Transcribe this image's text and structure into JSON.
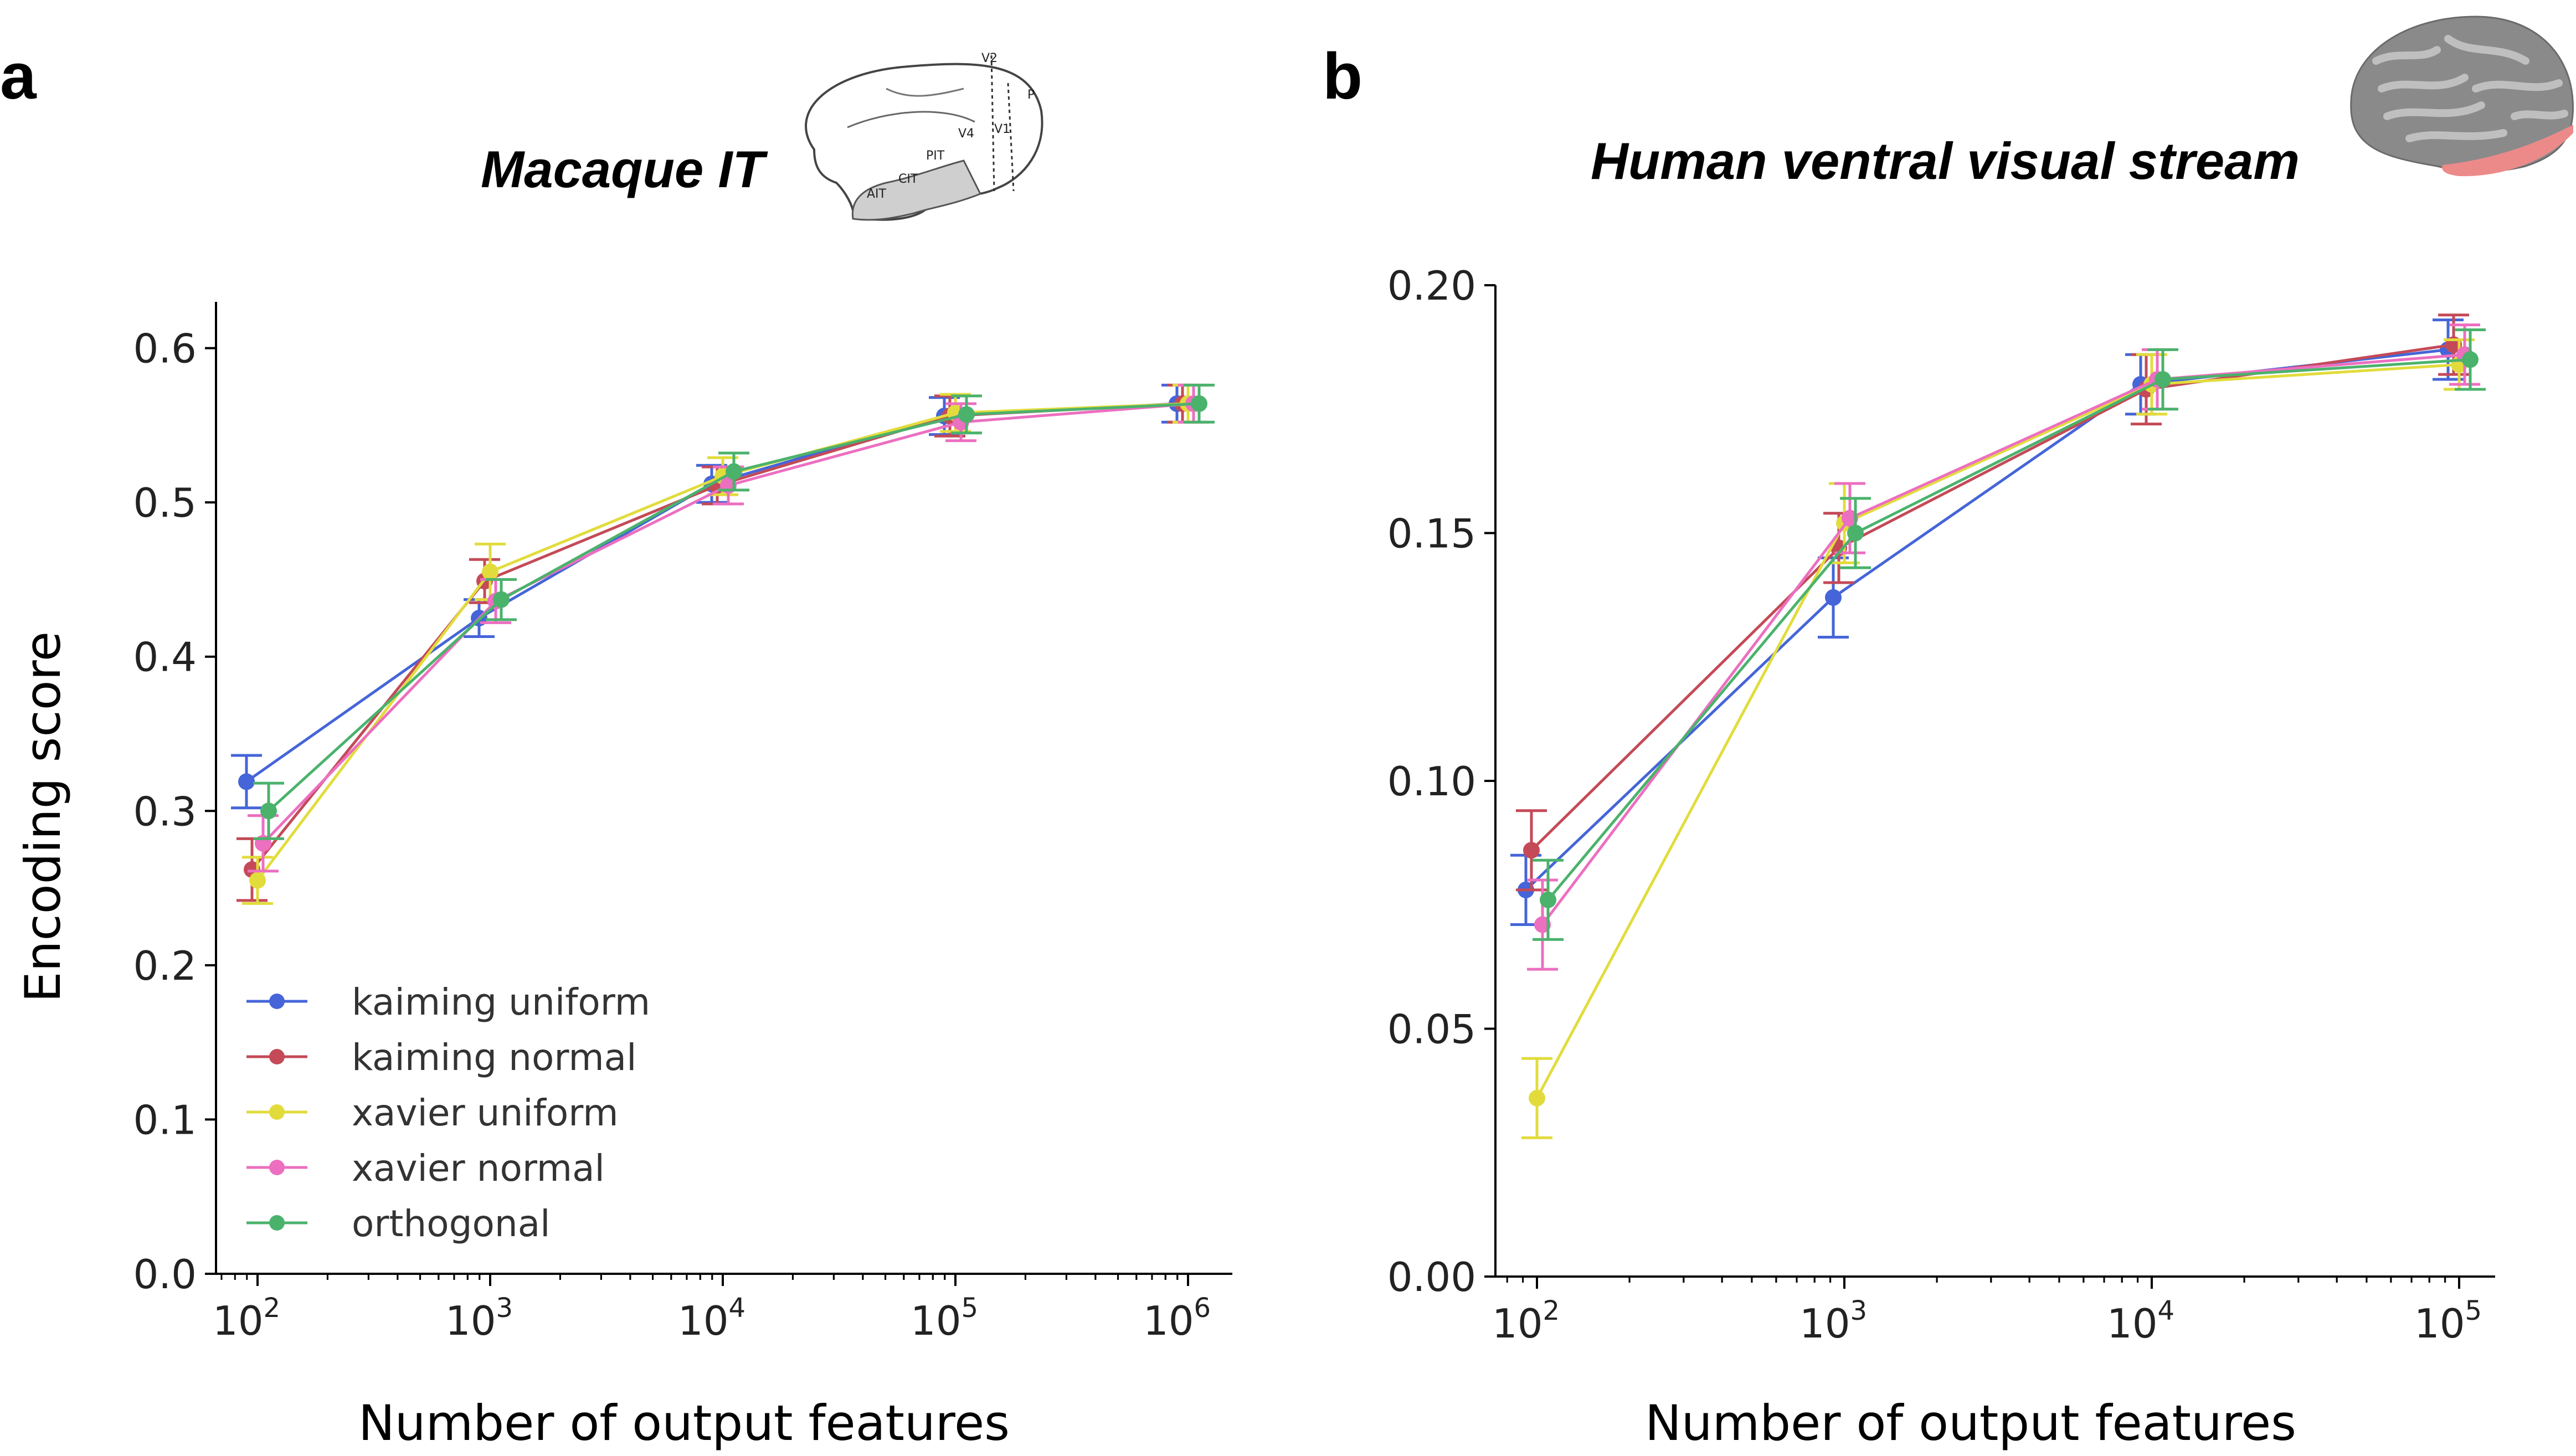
{
  "colors": {
    "kaiming uniform": "#4565d8",
    "kaiming normal": "#c44a57",
    "xavier uniform": "#e1dc3c",
    "xavier normal": "#ec6fc0",
    "orthogonal": "#4bb26c"
  },
  "icons": {
    "panel_a": "macaque-brain-icon",
    "panel_b": "human-brain-icon"
  },
  "brain_labels": [
    "V2",
    "P",
    "V4",
    "V1",
    "PIT",
    "CIT",
    "AIT"
  ],
  "chart_data": [
    {
      "type": "line",
      "panel": "a",
      "title": "Macaque IT",
      "xlabel": "Number of output features",
      "ylabel": "Encoding score",
      "xscale": "log",
      "x": [
        100,
        1000,
        10000,
        100000,
        1000000
      ],
      "xticks": [
        {
          "base": "10",
          "exp": "2"
        },
        {
          "base": "10",
          "exp": "3"
        },
        {
          "base": "10",
          "exp": "4"
        },
        {
          "base": "10",
          "exp": "5"
        },
        {
          "base": "10",
          "exp": "6"
        }
      ],
      "ylim": [
        0.0,
        0.63
      ],
      "yticks": [
        "0.0",
        "0.1",
        "0.2",
        "0.3",
        "0.4",
        "0.5",
        "0.6"
      ],
      "legend_location": "lower-left",
      "series": [
        {
          "name": "kaiming uniform",
          "values": [
            0.319,
            0.425,
            0.512,
            0.556,
            0.564
          ],
          "err": [
            0.017,
            0.012,
            0.012,
            0.012,
            0.012
          ]
        },
        {
          "name": "kaiming normal",
          "values": [
            0.262,
            0.449,
            0.511,
            0.556,
            0.564
          ],
          "err": [
            0.02,
            0.014,
            0.012,
            0.013,
            0.012
          ]
        },
        {
          "name": "xavier uniform",
          "values": [
            0.255,
            0.455,
            0.517,
            0.558,
            0.564
          ],
          "err": [
            0.015,
            0.018,
            0.012,
            0.012,
            0.012
          ]
        },
        {
          "name": "xavier normal",
          "values": [
            0.279,
            0.436,
            0.511,
            0.552,
            0.564
          ],
          "err": [
            0.018,
            0.014,
            0.012,
            0.012,
            0.012
          ]
        },
        {
          "name": "orthogonal",
          "values": [
            0.3,
            0.437,
            0.52,
            0.557,
            0.564
          ],
          "err": [
            0.018,
            0.013,
            0.012,
            0.012,
            0.012
          ]
        }
      ]
    },
    {
      "type": "line",
      "panel": "b",
      "title": "Human ventral visual stream",
      "xlabel": "Number of output features",
      "ylabel": "",
      "xscale": "log",
      "x": [
        100,
        1000,
        10000,
        100000
      ],
      "xticks": [
        {
          "base": "10",
          "exp": "2"
        },
        {
          "base": "10",
          "exp": "3"
        },
        {
          "base": "10",
          "exp": "4"
        },
        {
          "base": "10",
          "exp": "5"
        }
      ],
      "ylim": [
        0.0,
        0.2
      ],
      "yticks": [
        "0.00",
        "0.05",
        "0.10",
        "0.15",
        "0.20"
      ],
      "series": [
        {
          "name": "kaiming uniform",
          "values": [
            0.078,
            0.137,
            0.18,
            0.187
          ],
          "err": [
            0.007,
            0.008,
            0.006,
            0.006
          ]
        },
        {
          "name": "kaiming normal",
          "values": [
            0.086,
            0.147,
            0.179,
            0.188
          ],
          "err": [
            0.008,
            0.007,
            0.007,
            0.006
          ]
        },
        {
          "name": "xavier uniform",
          "values": [
            0.036,
            0.152,
            0.18,
            0.184
          ],
          "err": [
            0.008,
            0.008,
            0.006,
            0.005
          ]
        },
        {
          "name": "xavier normal",
          "values": [
            0.071,
            0.153,
            0.181,
            0.186
          ],
          "err": [
            0.009,
            0.007,
            0.006,
            0.006
          ]
        },
        {
          "name": "orthogonal",
          "values": [
            0.076,
            0.15,
            0.181,
            0.185
          ],
          "err": [
            0.008,
            0.007,
            0.006,
            0.006
          ]
        }
      ]
    }
  ]
}
